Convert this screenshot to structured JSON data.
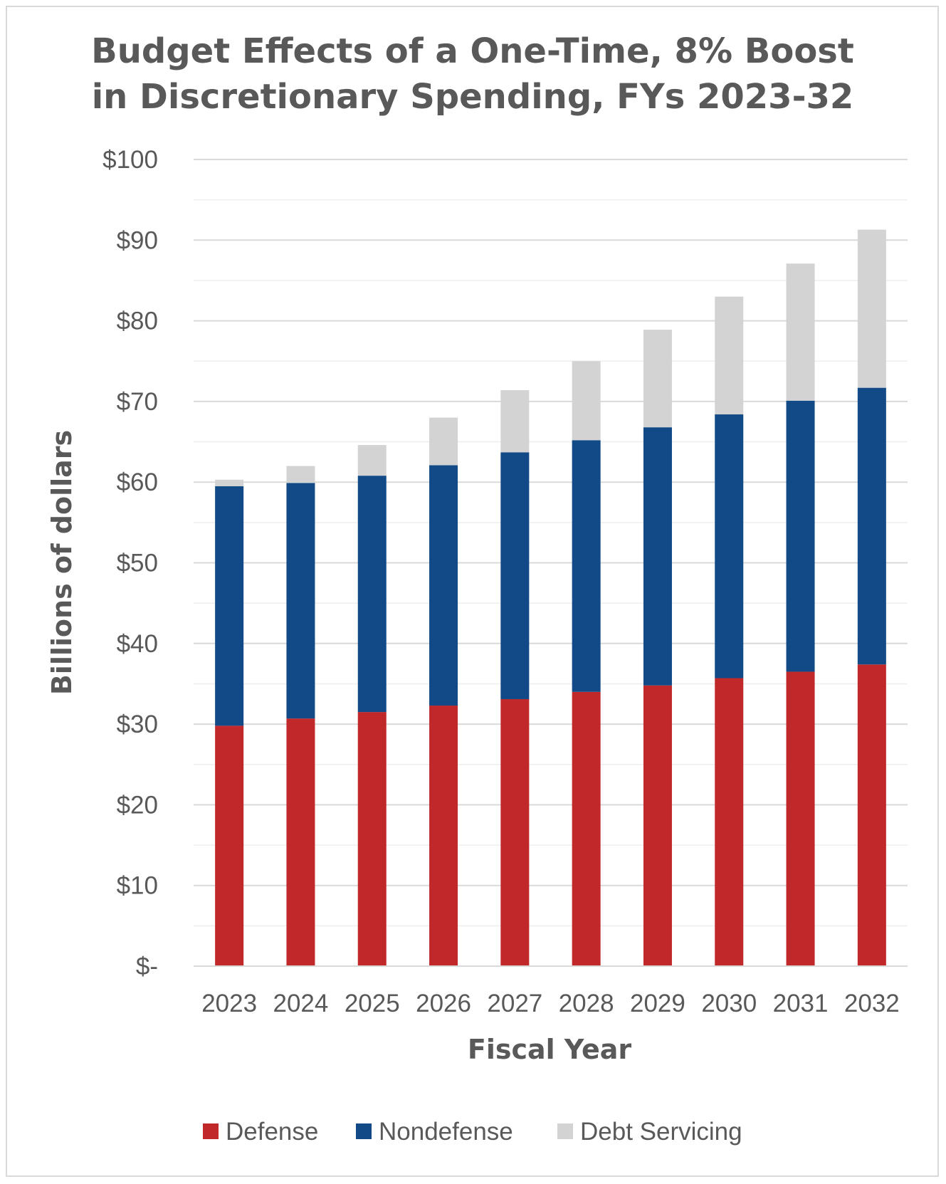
{
  "chart_data": {
    "type": "bar",
    "stacked": true,
    "title_lines": [
      "Budget Effects of a One-Time, 8% Boost",
      "in Discretionary Spending, FYs 2023-32"
    ],
    "xlabel": "Fiscal Year",
    "ylabel": "Billions of dollars",
    "ylim": [
      0,
      100
    ],
    "y_ticks": [
      0,
      10,
      20,
      30,
      40,
      50,
      60,
      70,
      80,
      90,
      100
    ],
    "y_tick_labels": [
      "$-",
      "$10",
      "$20",
      "$30",
      "$40",
      "$50",
      "$60",
      "$70",
      "$80",
      "$90",
      "$100"
    ],
    "grid": true,
    "minor_grid": true,
    "legend_position": "bottom",
    "categories": [
      "2023",
      "2024",
      "2025",
      "2026",
      "2027",
      "2028",
      "2029",
      "2030",
      "2031",
      "2032"
    ],
    "series": [
      {
        "name": "Defense",
        "color": "#c0282a",
        "values": [
          29.8,
          30.7,
          31.5,
          32.3,
          33.1,
          34.0,
          34.8,
          35.7,
          36.5,
          37.4
        ]
      },
      {
        "name": "Nondefense",
        "color": "#114a87",
        "values": [
          29.7,
          29.2,
          29.3,
          29.8,
          30.6,
          31.2,
          32.0,
          32.7,
          33.6,
          34.3
        ]
      },
      {
        "name": "Debt Servicing",
        "color": "#d3d3d3",
        "values": [
          0.8,
          2.1,
          3.8,
          5.9,
          7.7,
          9.8,
          12.1,
          14.6,
          17.0,
          19.6
        ]
      }
    ]
  }
}
